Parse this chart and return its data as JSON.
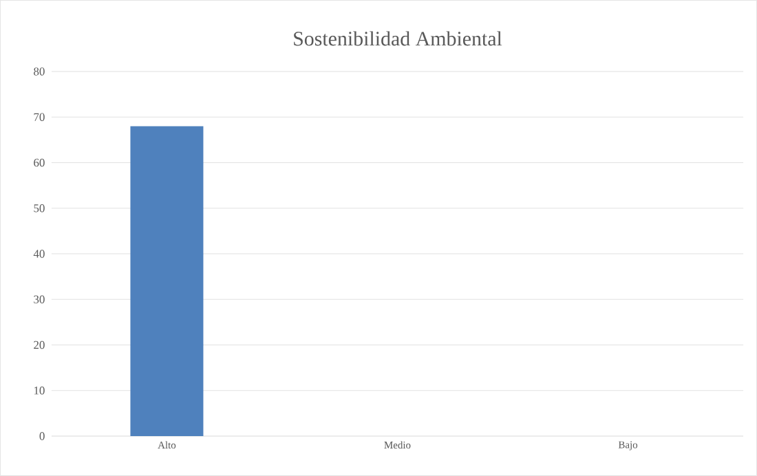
{
  "chart_data": {
    "type": "bar",
    "title": "Sostenibilidad Ambiental",
    "categories": [
      "Alto",
      "Medio",
      "Bajo"
    ],
    "values": [
      68,
      0,
      0
    ],
    "color": "#4f81bd",
    "ylim": [
      0,
      80
    ],
    "yticks": [
      0,
      10,
      20,
      30,
      40,
      50,
      60,
      70,
      80
    ],
    "grid": "y"
  }
}
